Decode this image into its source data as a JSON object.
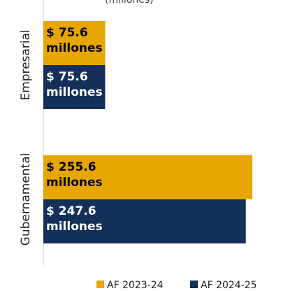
{
  "chart_data": {
    "type": "bar",
    "orientation": "horizontal",
    "title": "(millones)",
    "categories": [
      "Empresarial",
      "Gubernamental"
    ],
    "series": [
      {
        "name": "AF 2023-24",
        "color": "#E8A600",
        "label_color": "#000000",
        "values": [
          75.6,
          255.6
        ],
        "labels": [
          [
            "$ 75.6",
            "millones"
          ],
          [
            "$ 255.6",
            "millones"
          ]
        ]
      },
      {
        "name": "AF 2024-25",
        "color": "#14305A",
        "label_color": "#ffffff",
        "values": [
          75.6,
          247.6
        ],
        "labels": [
          [
            "$ 75.6",
            "millones"
          ],
          [
            "$ 247.6",
            "millones"
          ]
        ]
      }
    ],
    "xlim": [
      0,
      265
    ],
    "grid": false,
    "legend": "bottom-right"
  }
}
